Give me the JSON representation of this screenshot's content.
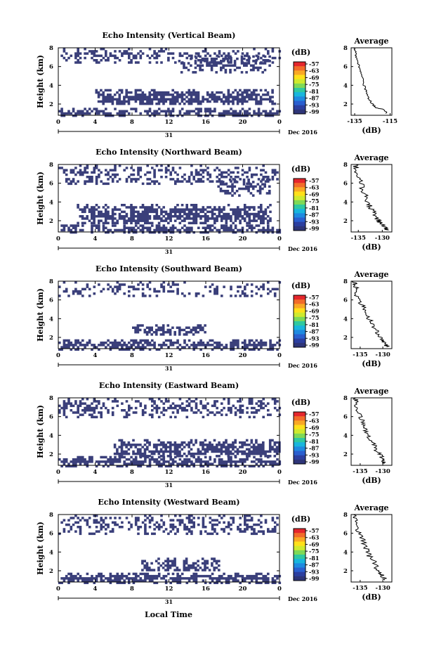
{
  "figure": {
    "xlabel": "Local Time",
    "date_day": "31",
    "date_month_year": "Dec 2016",
    "ylabel": "Height (km)",
    "colorbar_unit": "(dB)",
    "colorbar_ticks": [
      "-57",
      "-63",
      "-69",
      "-75",
      "-81",
      "-87",
      "-93",
      "-99"
    ],
    "colorbar_colors": [
      "#e4262c",
      "#f26b2a",
      "#f9a825",
      "#ffe01a",
      "#cfea2e",
      "#7ed957",
      "#2fc9a0",
      "#19b6dd",
      "#1f8ae0",
      "#2a5fcf",
      "#2c3fa0",
      "#2e3578"
    ],
    "data_color": "#3a3f7a",
    "avg_title": "Average",
    "avg_xlabel": "(dB)"
  },
  "chart_data": [
    {
      "type": "heatmap",
      "title": "Echo Intensity (Vertical Beam)",
      "xlabel": "Local Time",
      "ylabel": "Height (km)",
      "xticks": [
        "0",
        "4",
        "8",
        "12",
        "16",
        "20",
        "0"
      ],
      "yticks": [
        "2",
        "4",
        "6",
        "8"
      ],
      "xlim": [
        0,
        24
      ],
      "ylim": [
        0.8,
        8
      ],
      "colorbar": {
        "label": "(dB)",
        "ticks": [
          -57,
          -63,
          -69,
          -75,
          -81,
          -87,
          -93,
          -99
        ]
      },
      "echo_regions_km": [
        {
          "t0": 0,
          "t1": 24,
          "h0": 0.8,
          "h1": 1.6,
          "density": 0.8
        },
        {
          "t0": 4,
          "t1": 23.5,
          "h0": 2.0,
          "h1": 3.6,
          "density": 0.75
        },
        {
          "t0": 0,
          "t1": 24,
          "h0": 6.5,
          "h1": 8.0,
          "density": 0.35
        },
        {
          "t0": 13,
          "t1": 23,
          "h0": 5.5,
          "h1": 7.2,
          "density": 0.5
        }
      ],
      "average": {
        "title": "Average",
        "xlabel": "(dB)",
        "xticks": [
          "-135",
          "-115"
        ],
        "yticks": [
          "2",
          "4",
          "6",
          "8"
        ],
        "xlim": [
          -137,
          -114
        ],
        "ylim": [
          0.8,
          8
        ],
        "profile": [
          [
            -117,
            1.0
          ],
          [
            -118,
            1.4
          ],
          [
            -123,
            1.6
          ],
          [
            -125,
            2.0
          ],
          [
            -127,
            2.6
          ],
          [
            -128,
            3.1
          ],
          [
            -129,
            3.6
          ],
          [
            -130,
            4.2
          ],
          [
            -131,
            5.0
          ],
          [
            -132,
            5.6
          ],
          [
            -133,
            6.3
          ],
          [
            -134,
            7.0
          ],
          [
            -134.5,
            7.6
          ],
          [
            -135,
            8.0
          ]
        ]
      }
    },
    {
      "type": "heatmap",
      "title": "Echo Intensity (Northward Beam)",
      "xlabel": "Local Time",
      "ylabel": "Height (km)",
      "xticks": [
        "0",
        "4",
        "8",
        "12",
        "16",
        "20",
        "0"
      ],
      "yticks": [
        "2",
        "4",
        "6",
        "8"
      ],
      "xlim": [
        0,
        24
      ],
      "ylim": [
        0.8,
        8
      ],
      "colorbar": {
        "label": "(dB)",
        "ticks": [
          -57,
          -63,
          -69,
          -75,
          -81,
          -87,
          -93,
          -99
        ]
      },
      "echo_regions_km": [
        {
          "t0": 0,
          "t1": 24,
          "h0": 0.8,
          "h1": 1.6,
          "density": 0.85
        },
        {
          "t0": 2,
          "t1": 23,
          "h0": 1.8,
          "h1": 3.8,
          "density": 0.7
        },
        {
          "t0": 0,
          "t1": 24,
          "h0": 6.0,
          "h1": 8.0,
          "density": 0.35
        },
        {
          "t0": 17,
          "t1": 23,
          "h0": 4.8,
          "h1": 6.5,
          "density": 0.4
        }
      ],
      "average": {
        "title": "Average",
        "xlabel": "(dB)",
        "xticks": [
          "-135",
          "-130"
        ],
        "yticks": [
          "2",
          "4",
          "6",
          "8"
        ],
        "xlim": [
          -136.5,
          -128
        ],
        "ylim": [
          0.8,
          8
        ],
        "profile": [
          [
            -129,
            1.0
          ],
          [
            -129.5,
            1.4
          ],
          [
            -130.5,
            1.8
          ],
          [
            -131,
            2.2
          ],
          [
            -131.5,
            2.8
          ],
          [
            -132.5,
            3.4
          ],
          [
            -133,
            4.0
          ],
          [
            -133.5,
            4.6
          ],
          [
            -134,
            5.2
          ],
          [
            -134.5,
            6.0
          ],
          [
            -135,
            6.8
          ],
          [
            -135.5,
            7.6
          ],
          [
            -135.5,
            8.0
          ]
        ]
      }
    },
    {
      "type": "heatmap",
      "title": "Echo Intensity (Southward Beam)",
      "xlabel": "Local Time",
      "ylabel": "Height (km)",
      "xticks": [
        "0",
        "4",
        "8",
        "12",
        "16",
        "20",
        "0"
      ],
      "yticks": [
        "2",
        "4",
        "6",
        "8"
      ],
      "xlim": [
        0,
        24
      ],
      "ylim": [
        0.8,
        8
      ],
      "colorbar": {
        "label": "(dB)",
        "ticks": [
          -57,
          -63,
          -69,
          -75,
          -81,
          -87,
          -93,
          -99
        ]
      },
      "echo_regions_km": [
        {
          "t0": 0,
          "t1": 24,
          "h0": 0.8,
          "h1": 1.8,
          "density": 0.75
        },
        {
          "t0": 8,
          "t1": 16,
          "h0": 2.2,
          "h1": 3.4,
          "density": 0.65
        },
        {
          "t0": 0,
          "t1": 24,
          "h0": 6.5,
          "h1": 8.0,
          "density": 0.25
        }
      ],
      "average": {
        "title": "Average",
        "xlabel": "(dB)",
        "xticks": [
          "-135",
          "-130"
        ],
        "yticks": [
          "2",
          "4",
          "6",
          "8"
        ],
        "xlim": [
          -137,
          -128
        ],
        "ylim": [
          0.8,
          8
        ],
        "profile": [
          [
            -129,
            1.0
          ],
          [
            -129.5,
            1.4
          ],
          [
            -130.5,
            1.8
          ],
          [
            -131,
            2.4
          ],
          [
            -132,
            3.0
          ],
          [
            -132.5,
            3.6
          ],
          [
            -133.5,
            4.2
          ],
          [
            -134,
            4.8
          ],
          [
            -134.5,
            5.4
          ],
          [
            -135.5,
            6.2
          ],
          [
            -136,
            7.0
          ],
          [
            -136,
            7.6
          ],
          [
            -136.5,
            8.0
          ]
        ]
      }
    },
    {
      "type": "heatmap",
      "title": "Echo Intensity (Eastward Beam)",
      "xlabel": "Local Time",
      "ylabel": "Height (km)",
      "xticks": [
        "0",
        "4",
        "8",
        "12",
        "16",
        "20",
        "0"
      ],
      "yticks": [
        "2",
        "4",
        "6",
        "8"
      ],
      "xlim": [
        0,
        24
      ],
      "ylim": [
        0.8,
        8
      ],
      "colorbar": {
        "label": "(dB)",
        "ticks": [
          -57,
          -63,
          -69,
          -75,
          -81,
          -87,
          -93,
          -99
        ]
      },
      "echo_regions_km": [
        {
          "t0": 0,
          "t1": 24,
          "h0": 0.8,
          "h1": 1.8,
          "density": 0.8
        },
        {
          "t0": 6,
          "t1": 24,
          "h0": 1.8,
          "h1": 3.6,
          "density": 0.65
        },
        {
          "t0": 0,
          "t1": 24,
          "h0": 6.0,
          "h1": 8.0,
          "density": 0.4
        }
      ],
      "average": {
        "title": "Average",
        "xlabel": "(dB)",
        "xticks": [
          "-135",
          "-130"
        ],
        "yticks": [
          "2",
          "4",
          "6",
          "8"
        ],
        "xlim": [
          -137,
          -128
        ],
        "ylim": [
          0.8,
          8
        ],
        "profile": [
          [
            -129.5,
            1.0
          ],
          [
            -130,
            1.4
          ],
          [
            -130.5,
            1.8
          ],
          [
            -131.5,
            2.4
          ],
          [
            -132,
            3.0
          ],
          [
            -133,
            3.6
          ],
          [
            -133.5,
            4.2
          ],
          [
            -134,
            4.8
          ],
          [
            -134.5,
            5.4
          ],
          [
            -135,
            6.0
          ],
          [
            -135.5,
            6.8
          ],
          [
            -136,
            7.6
          ],
          [
            -136,
            8.0
          ]
        ]
      }
    },
    {
      "type": "heatmap",
      "title": "Echo Intensity (Westward Beam)",
      "xlabel": "Local Time",
      "ylabel": "Height (km)",
      "xticks": [
        "0",
        "4",
        "8",
        "12",
        "16",
        "20",
        "0"
      ],
      "yticks": [
        "2",
        "4",
        "6",
        "8"
      ],
      "xlim": [
        0,
        24
      ],
      "ylim": [
        0.8,
        8
      ],
      "colorbar": {
        "label": "(dB)",
        "ticks": [
          -57,
          -63,
          -69,
          -75,
          -81,
          -87,
          -93,
          -99
        ]
      },
      "echo_regions_km": [
        {
          "t0": 0,
          "t1": 24,
          "h0": 0.8,
          "h1": 1.8,
          "density": 0.8
        },
        {
          "t0": 9,
          "t1": 18,
          "h0": 2.0,
          "h1": 3.4,
          "density": 0.6
        },
        {
          "t0": 0,
          "t1": 24,
          "h0": 6.0,
          "h1": 8.0,
          "density": 0.35
        }
      ],
      "average": {
        "title": "Average",
        "xlabel": "(dB)",
        "xticks": [
          "-135",
          "-130"
        ],
        "yticks": [
          "2",
          "4",
          "6",
          "8"
        ],
        "xlim": [
          -137,
          -128
        ],
        "ylim": [
          0.8,
          8
        ],
        "profile": [
          [
            -129.5,
            1.0
          ],
          [
            -130,
            1.4
          ],
          [
            -130.5,
            1.8
          ],
          [
            -131.5,
            2.4
          ],
          [
            -132,
            3.0
          ],
          [
            -133,
            3.6
          ],
          [
            -133.5,
            4.2
          ],
          [
            -134,
            4.8
          ],
          [
            -134.5,
            5.4
          ],
          [
            -135.5,
            6.2
          ],
          [
            -136,
            7.0
          ],
          [
            -136,
            7.6
          ],
          [
            -136.5,
            8.0
          ]
        ]
      }
    }
  ]
}
